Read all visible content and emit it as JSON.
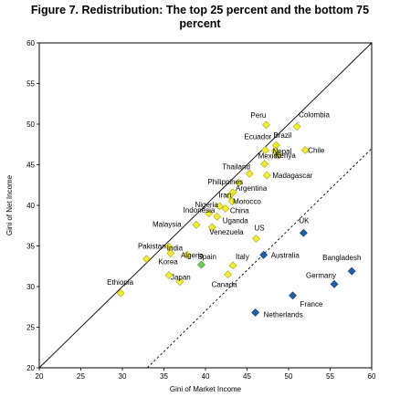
{
  "chart_data": {
    "type": "scatter",
    "title_line1": "Figure 7. Redistribution: The top 25 percent and the bottom 75",
    "title_line2": "percent",
    "xlabel": "Gini of Market Income",
    "ylabel": "Gini of Net Income",
    "xlim": [
      20,
      60
    ],
    "ylim": [
      20,
      60
    ],
    "xticks": [
      "20",
      "25",
      "30",
      "35",
      "40",
      "45",
      "50",
      "55",
      "60"
    ],
    "yticks": [
      "20",
      "25",
      "30",
      "35",
      "40",
      "45",
      "50",
      "55",
      "60"
    ],
    "grid": false,
    "reference_lines": [
      {
        "style": "solid",
        "points": [
          [
            20,
            20
          ],
          [
            60,
            60
          ]
        ]
      },
      {
        "style": "dashed",
        "points": [
          [
            33,
            20
          ],
          [
            60,
            47
          ]
        ]
      }
    ],
    "series": [
      {
        "marker": "diamond",
        "color": "#f2ef2c",
        "stroke": "#a8a61a",
        "points": [
          {
            "label": "Peru",
            "x": 47.3,
            "y": 49.9
          },
          {
            "label": "Colombia",
            "x": 51.0,
            "y": 49.7
          },
          {
            "label": "Chile",
            "x": 52.0,
            "y": 46.8
          },
          {
            "label": "Ecuador",
            "x": 47.2,
            "y": 46.8
          },
          {
            "label": "Brazil",
            "x": 48.5,
            "y": 47.4
          },
          {
            "label": "Nepal",
            "x": 48.4,
            "y": 46.7
          },
          {
            "label": "Kenya",
            "x": 48.7,
            "y": 46.2
          },
          {
            "label": "Mexico",
            "x": 47.1,
            "y": 45.1
          },
          {
            "label": "Thailand",
            "x": 45.3,
            "y": 43.9
          },
          {
            "label": "Madagascar",
            "x": 47.4,
            "y": 43.7
          },
          {
            "label": "Philippines",
            "x": 44.0,
            "y": 42.8
          },
          {
            "label": "Argentina",
            "x": 43.3,
            "y": 41.6
          },
          {
            "label": "Iran",
            "x": 42.9,
            "y": 41.2
          },
          {
            "label": "Morocco",
            "x": 43.2,
            "y": 40.5
          },
          {
            "label": "Nigeria",
            "x": 41.7,
            "y": 39.9
          },
          {
            "label": "China",
            "x": 42.4,
            "y": 39.6
          },
          {
            "label": "Indonesia",
            "x": 40.4,
            "y": 39.0
          },
          {
            "label": "Uganda",
            "x": 41.4,
            "y": 38.6
          },
          {
            "label": "Malaysia",
            "x": 38.9,
            "y": 37.6
          },
          {
            "label": "Venezuela",
            "x": 40.8,
            "y": 37.3
          },
          {
            "label": "US",
            "x": 46.1,
            "y": 35.9
          },
          {
            "label": "Pakistan",
            "x": 35.6,
            "y": 34.9
          },
          {
            "label": "India",
            "x": 35.8,
            "y": 34.1
          },
          {
            "label": "Algeria",
            "x": 37.8,
            "y": 33.9
          },
          {
            "label": "Ethiopia",
            "x": 29.8,
            "y": 29.2
          },
          {
            "label": "Korea",
            "x": 32.9,
            "y": 33.4
          },
          {
            "label": "Japan",
            "x": 35.6,
            "y": 31.4
          },
          {
            "label": "Italy",
            "x": 43.3,
            "y": 32.6
          },
          {
            "label": "Canada",
            "x": 42.7,
            "y": 31.5
          },
          {
            "label": "",
            "x": 36.9,
            "y": 30.6
          }
        ]
      },
      {
        "marker": "diamond",
        "color": "#6fcf5a",
        "stroke": "#3e8f33",
        "points": [
          {
            "label": "Spain",
            "x": 39.5,
            "y": 32.7
          }
        ]
      },
      {
        "marker": "diamond",
        "color": "#1f5fa8",
        "stroke": "#123c6e",
        "points": [
          {
            "label": "UK",
            "x": 51.8,
            "y": 36.6
          },
          {
            "label": "Australia",
            "x": 47.0,
            "y": 33.9
          },
          {
            "label": "Bangladesh",
            "x": 57.6,
            "y": 31.9
          },
          {
            "label": "Germany",
            "x": 55.5,
            "y": 30.3
          },
          {
            "label": "France",
            "x": 50.5,
            "y": 28.9
          },
          {
            "label": "Netherlands",
            "x": 46.0,
            "y": 26.8
          }
        ]
      }
    ]
  }
}
